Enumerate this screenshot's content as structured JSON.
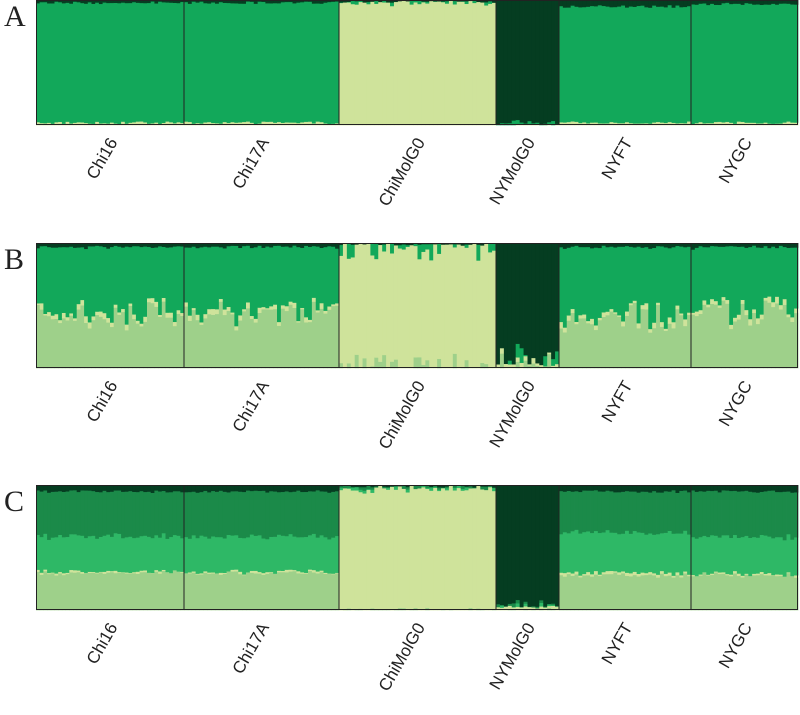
{
  "chart_data": [
    {
      "type": "stacked-bar",
      "panel": "A",
      "populations": [
        {
          "name": "Chi16",
          "n": 40
        },
        {
          "name": "Chi17A",
          "n": 40
        },
        {
          "name": "ChiMolG0",
          "n": 40
        },
        {
          "name": "NYMolG0",
          "n": 16
        },
        {
          "name": "NYFT",
          "n": 34
        },
        {
          "name": "NYGC",
          "n": 28
        }
      ],
      "clusters": [
        {
          "color": "#cfe39b",
          "base": [
            0.02,
            0.02,
            0.98,
            0.0,
            0.02,
            0.02
          ],
          "jitter": 0.01
        },
        {
          "color": "#12a85a",
          "base": [
            0.96,
            0.96,
            0.01,
            0.02,
            0.93,
            0.95
          ],
          "jitter": 0.02
        },
        {
          "color": "#053d21",
          "base": [
            0.02,
            0.02,
            0.01,
            0.98,
            0.05,
            0.03
          ],
          "jitter": 0.01
        }
      ],
      "ylim": [
        0,
        1
      ]
    },
    {
      "type": "stacked-bar",
      "panel": "B",
      "populations": [
        {
          "name": "Chi16",
          "n": 40
        },
        {
          "name": "Chi17A",
          "n": 40
        },
        {
          "name": "ChiMolG0",
          "n": 40
        },
        {
          "name": "NYMolG0",
          "n": 16
        },
        {
          "name": "NYFT",
          "n": 34
        },
        {
          "name": "NYGC",
          "n": 28
        }
      ],
      "clusters": [
        {
          "color": "#9ed08a",
          "base": [
            0.42,
            0.43,
            0.0,
            0.0,
            0.38,
            0.45
          ],
          "jitter": 0.14
        },
        {
          "color": "#cfe39b",
          "base": [
            0.03,
            0.03,
            0.98,
            0.03,
            0.03,
            0.03
          ],
          "jitter": 0.02
        },
        {
          "color": "#12a85a",
          "base": [
            0.52,
            0.51,
            0.01,
            0.01,
            0.56,
            0.49
          ],
          "jitter": 0.14
        },
        {
          "color": "#053d21",
          "base": [
            0.03,
            0.03,
            0.01,
            0.96,
            0.03,
            0.03
          ],
          "jitter": 0.01
        }
      ],
      "ylim": [
        0,
        1
      ]
    },
    {
      "type": "stacked-bar",
      "panel": "C",
      "populations": [
        {
          "name": "Chi16",
          "n": 40
        },
        {
          "name": "Chi17A",
          "n": 40
        },
        {
          "name": "ChiMolG0",
          "n": 40
        },
        {
          "name": "NYMolG0",
          "n": 16
        },
        {
          "name": "NYFT",
          "n": 34
        },
        {
          "name": "NYGC",
          "n": 28
        }
      ],
      "clusters": [
        {
          "color": "#9ed08a",
          "base": [
            0.3,
            0.3,
            0.0,
            0.0,
            0.28,
            0.28
          ],
          "jitter": 0.02
        },
        {
          "color": "#cfe39b",
          "base": [
            0.01,
            0.01,
            0.97,
            0.02,
            0.02,
            0.01
          ],
          "jitter": 0.01
        },
        {
          "color": "#2eb866",
          "base": [
            0.28,
            0.28,
            0.01,
            0.01,
            0.32,
            0.3
          ],
          "jitter": 0.02
        },
        {
          "color": "#1b8a49",
          "base": [
            0.36,
            0.36,
            0.01,
            0.01,
            0.33,
            0.36
          ],
          "jitter": 0.02
        },
        {
          "color": "#053d21",
          "base": [
            0.05,
            0.05,
            0.01,
            0.96,
            0.05,
            0.05
          ],
          "jitter": 0.01
        }
      ],
      "ylim": [
        0,
        1
      ]
    }
  ]
}
